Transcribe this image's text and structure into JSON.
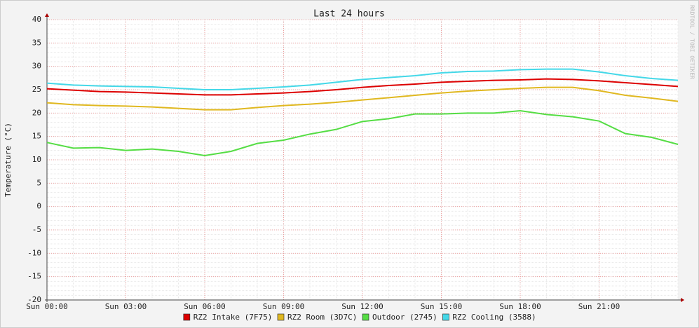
{
  "chart_data": {
    "type": "line",
    "title": "Last 24 hours",
    "y_label": "Temperature (°C)",
    "watermark": "RRDTOOL / TOBI OETIKER",
    "x": [
      0,
      1,
      2,
      3,
      4,
      5,
      6,
      7,
      8,
      9,
      10,
      11,
      12,
      13,
      14,
      15,
      16,
      17,
      18,
      19,
      20,
      21,
      22,
      23,
      24
    ],
    "xlim": [
      0,
      24
    ],
    "xticks": [
      {
        "value": 0,
        "label": "Sun 00:00"
      },
      {
        "value": 3,
        "label": "Sun 03:00"
      },
      {
        "value": 6,
        "label": "Sun 06:00"
      },
      {
        "value": 9,
        "label": "Sun 09:00"
      },
      {
        "value": 12,
        "label": "Sun 12:00"
      },
      {
        "value": 15,
        "label": "Sun 15:00"
      },
      {
        "value": 18,
        "label": "Sun 18:00"
      },
      {
        "value": 21,
        "label": "Sun 21:00"
      }
    ],
    "ylim": [
      -20,
      40
    ],
    "yticks": [
      -20,
      -15,
      -10,
      -5,
      0,
      5,
      10,
      15,
      20,
      25,
      30,
      35,
      40
    ],
    "grid": true,
    "legend": "bottom",
    "series": [
      {
        "name": "RZ2 Intake (7F75)",
        "color": "#dd0000",
        "values": [
          25.2,
          24.9,
          24.6,
          24.5,
          24.3,
          24.1,
          23.9,
          23.9,
          24.1,
          24.3,
          24.6,
          25.0,
          25.5,
          25.9,
          26.2,
          26.6,
          26.8,
          27.0,
          27.1,
          27.3,
          27.2,
          26.9,
          26.5,
          26.1,
          25.7
        ]
      },
      {
        "name": "RZ2 Room (3D7C)",
        "color": "#e0b820",
        "values": [
          22.2,
          21.8,
          21.6,
          21.5,
          21.3,
          21.0,
          20.7,
          20.7,
          21.2,
          21.6,
          21.9,
          22.3,
          22.8,
          23.3,
          23.8,
          24.3,
          24.7,
          25.0,
          25.3,
          25.5,
          25.5,
          24.8,
          23.8,
          23.2,
          22.5
        ]
      },
      {
        "name": "Outdoor (2745)",
        "color": "#55dd44",
        "values": [
          13.7,
          12.5,
          12.6,
          12.0,
          12.3,
          11.8,
          10.9,
          11.8,
          13.5,
          14.2,
          15.5,
          16.5,
          18.2,
          18.8,
          19.8,
          19.8,
          20.0,
          20.0,
          20.5,
          19.7,
          19.2,
          18.3,
          15.6,
          14.8,
          13.3
        ]
      },
      {
        "name": "RZ2 Cooling (3588)",
        "color": "#44d8e8",
        "values": [
          26.4,
          26.0,
          25.8,
          25.7,
          25.6,
          25.3,
          25.0,
          25.0,
          25.3,
          25.6,
          26.0,
          26.6,
          27.2,
          27.6,
          28.0,
          28.6,
          28.9,
          29.0,
          29.3,
          29.4,
          29.4,
          28.8,
          28.0,
          27.4,
          27.0
        ]
      }
    ]
  }
}
